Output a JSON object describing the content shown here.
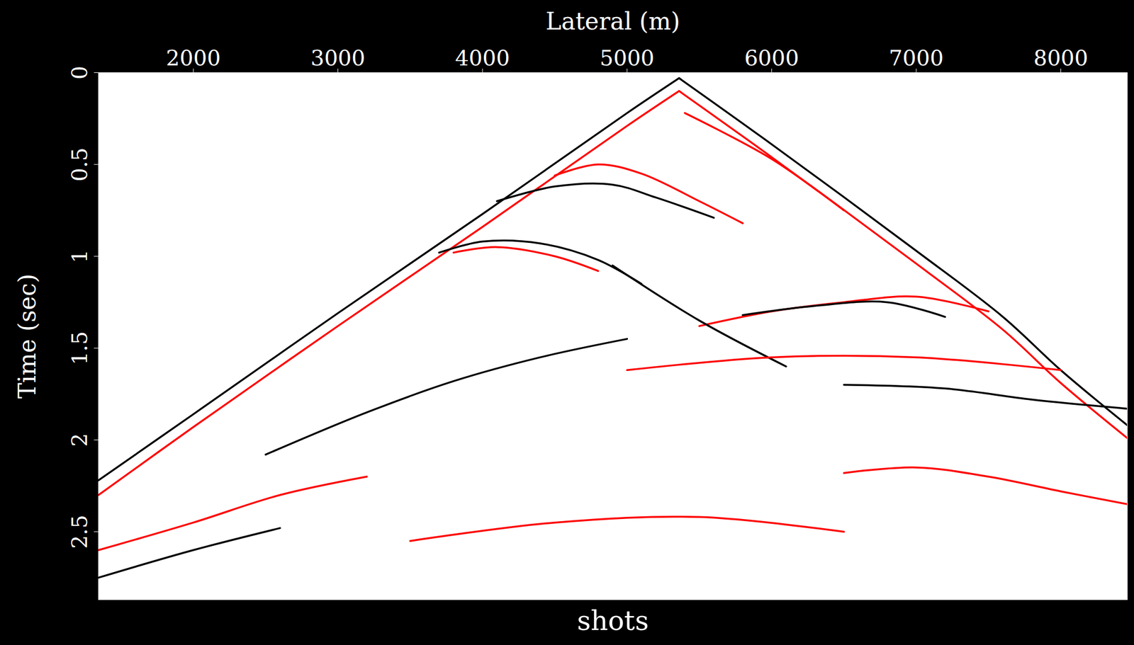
{
  "chart_data": {
    "type": "line",
    "xlabel": "Lateral (m)",
    "ylabel": "Time (sec)",
    "caption": "shots",
    "xlim": [
      1344,
      8460
    ],
    "ylim": [
      0,
      2.87
    ],
    "xticks": [
      2000,
      3000,
      4000,
      5000,
      6000,
      7000,
      8000
    ],
    "yticks": [
      0,
      0.5,
      1,
      1.5,
      2,
      2.5
    ],
    "grid": false,
    "series": [
      {
        "color": "black",
        "x": [
          1344,
          2000,
          3000,
          4000,
          5000,
          5360
        ],
        "values": [
          2.22,
          1.86,
          1.31,
          0.77,
          0.22,
          0.03
        ]
      },
      {
        "color": "black",
        "x": [
          5360,
          6000,
          7000,
          7600,
          8000,
          8460
        ],
        "values": [
          0.03,
          0.39,
          0.97,
          1.33,
          1.62,
          1.92
        ]
      },
      {
        "color": "red",
        "x": [
          1344,
          2000,
          3000,
          4000,
          5000,
          5360
        ],
        "values": [
          2.3,
          1.93,
          1.38,
          0.84,
          0.29,
          0.1
        ]
      },
      {
        "color": "red",
        "x": [
          5360,
          6000,
          7000,
          7600,
          8000,
          8460
        ],
        "values": [
          0.1,
          0.46,
          1.04,
          1.4,
          1.69,
          1.99
        ]
      },
      {
        "color": "red",
        "x": [
          5400,
          6000,
          6500
        ],
        "values": [
          0.22,
          0.47,
          0.75
        ]
      },
      {
        "color": "black",
        "x": [
          4100,
          4500,
          4900,
          5200,
          5600
        ],
        "values": [
          0.7,
          0.62,
          0.61,
          0.68,
          0.79
        ]
      },
      {
        "color": "red",
        "x": [
          4500,
          4800,
          5100,
          5500,
          5800
        ],
        "values": [
          0.56,
          0.5,
          0.55,
          0.7,
          0.82
        ]
      },
      {
        "color": "black",
        "x": [
          3700,
          4000,
          4400,
          4800,
          5100
        ],
        "values": [
          0.98,
          0.92,
          0.93,
          1.02,
          1.15
        ]
      },
      {
        "color": "red",
        "x": [
          3800,
          4100,
          4500,
          4800
        ],
        "values": [
          0.98,
          0.95,
          1.0,
          1.08
        ]
      },
      {
        "color": "red",
        "x": [
          5500,
          6000,
          6500,
          7000,
          7500
        ],
        "values": [
          1.38,
          1.3,
          1.25,
          1.22,
          1.3
        ]
      },
      {
        "color": "black",
        "x": [
          5800,
          6300,
          6800,
          7200
        ],
        "values": [
          1.32,
          1.27,
          1.25,
          1.33
        ]
      },
      {
        "color": "black",
        "x": [
          2500,
          3200,
          3800,
          4400,
          5000
        ],
        "values": [
          2.08,
          1.85,
          1.68,
          1.55,
          1.45
        ]
      },
      {
        "color": "black",
        "x": [
          4900,
          5500,
          6100
        ],
        "values": [
          1.05,
          1.35,
          1.6
        ]
      },
      {
        "color": "red",
        "x": [
          5000,
          6000,
          7000,
          8000
        ],
        "values": [
          1.62,
          1.55,
          1.55,
          1.62
        ]
      },
      {
        "color": "black",
        "x": [
          6500,
          7200,
          7800,
          8460
        ],
        "values": [
          1.7,
          1.72,
          1.78,
          1.83
        ]
      },
      {
        "color": "red",
        "x": [
          6500,
          7000,
          7500,
          8000,
          8460
        ],
        "values": [
          2.18,
          2.15,
          2.2,
          2.28,
          2.35
        ]
      },
      {
        "color": "red",
        "x": [
          1344,
          2000,
          2600,
          3200
        ],
        "values": [
          2.6,
          2.45,
          2.3,
          2.2
        ]
      },
      {
        "color": "black",
        "x": [
          1344,
          2000,
          2600
        ],
        "values": [
          2.75,
          2.6,
          2.48
        ]
      },
      {
        "color": "red",
        "x": [
          3500,
          4500,
          5500,
          6500
        ],
        "values": [
          2.55,
          2.45,
          2.42,
          2.5
        ]
      }
    ]
  }
}
